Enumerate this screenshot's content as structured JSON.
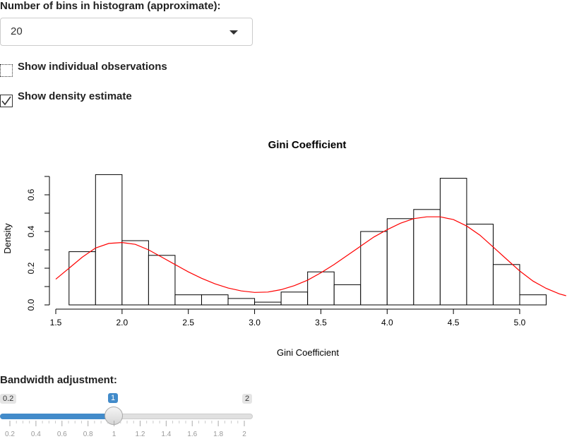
{
  "controls": {
    "bins_label": "Number of bins in histogram (approximate):",
    "bins_value": "20",
    "show_obs_label": "Show individual observations",
    "show_obs_checked": false,
    "show_density_label": "Show density estimate",
    "show_density_checked": true,
    "bandwidth_label": "Bandwidth adjustment:",
    "bandwidth_min": "0.2",
    "bandwidth_max": "2",
    "bandwidth_value": "1",
    "bandwidth_ticks": [
      "0.2",
      "0.4",
      "0.6",
      "0.8",
      "1",
      "1.2",
      "1.4",
      "1.6",
      "1.8",
      "2"
    ]
  },
  "colors": {
    "density_line": "#ff0000",
    "slider_accent": "#428bca"
  },
  "chart_data": {
    "type": "bar",
    "title": "Gini Coefficient",
    "xlabel": "Gini Coefficient",
    "ylabel": "Density",
    "xlim": [
      1.5,
      5.2
    ],
    "ylim": [
      0,
      0.7
    ],
    "xticks": [
      "1.5",
      "2.0",
      "2.5",
      "3.0",
      "3.5",
      "4.0",
      "4.5",
      "5.0"
    ],
    "yticks": [
      "0.0",
      "0.2",
      "0.4",
      "0.6"
    ],
    "bins": [
      {
        "x0": 1.6,
        "x1": 1.8,
        "density": 0.29
      },
      {
        "x0": 1.8,
        "x1": 2.0,
        "density": 0.71
      },
      {
        "x0": 2.0,
        "x1": 2.2,
        "density": 0.35
      },
      {
        "x0": 2.2,
        "x1": 2.4,
        "density": 0.27
      },
      {
        "x0": 2.4,
        "x1": 2.6,
        "density": 0.055
      },
      {
        "x0": 2.6,
        "x1": 2.8,
        "density": 0.055
      },
      {
        "x0": 2.8,
        "x1": 3.0,
        "density": 0.035
      },
      {
        "x0": 3.0,
        "x1": 3.2,
        "density": 0.015
      },
      {
        "x0": 3.2,
        "x1": 3.4,
        "density": 0.07
      },
      {
        "x0": 3.4,
        "x1": 3.6,
        "density": 0.18
      },
      {
        "x0": 3.6,
        "x1": 3.8,
        "density": 0.11
      },
      {
        "x0": 3.8,
        "x1": 4.0,
        "density": 0.4
      },
      {
        "x0": 4.0,
        "x1": 4.2,
        "density": 0.47
      },
      {
        "x0": 4.2,
        "x1": 4.4,
        "density": 0.52
      },
      {
        "x0": 4.4,
        "x1": 4.6,
        "density": 0.69
      },
      {
        "x0": 4.6,
        "x1": 4.8,
        "density": 0.44
      },
      {
        "x0": 4.8,
        "x1": 5.0,
        "density": 0.22
      },
      {
        "x0": 5.0,
        "x1": 5.2,
        "density": 0.055
      }
    ],
    "density_curve": {
      "x": [
        1.5,
        1.6,
        1.7,
        1.8,
        1.9,
        2.0,
        2.1,
        2.2,
        2.3,
        2.4,
        2.5,
        2.6,
        2.7,
        2.8,
        2.9,
        3.0,
        3.1,
        3.2,
        3.3,
        3.4,
        3.5,
        3.6,
        3.7,
        3.8,
        3.9,
        4.0,
        4.1,
        4.2,
        4.3,
        4.4,
        4.5,
        4.6,
        4.7,
        4.8,
        4.9,
        5.0,
        5.1,
        5.2,
        5.3,
        5.35
      ],
      "y": [
        0.14,
        0.2,
        0.26,
        0.31,
        0.335,
        0.34,
        0.33,
        0.3,
        0.26,
        0.22,
        0.18,
        0.145,
        0.115,
        0.092,
        0.076,
        0.068,
        0.07,
        0.083,
        0.105,
        0.135,
        0.175,
        0.22,
        0.27,
        0.32,
        0.37,
        0.41,
        0.445,
        0.47,
        0.48,
        0.48,
        0.465,
        0.43,
        0.38,
        0.315,
        0.25,
        0.185,
        0.13,
        0.09,
        0.06,
        0.05
      ]
    }
  }
}
